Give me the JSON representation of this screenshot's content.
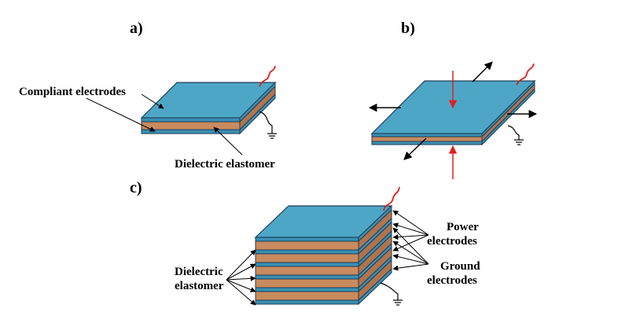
{
  "panels": {
    "a": {
      "label": "a)",
      "compliant_electrodes": "Compliant electrodes",
      "dielectric_elastomer": "Dielectric elastomer"
    },
    "b": {
      "label": "b)"
    },
    "c": {
      "label": "c)",
      "dielectric_line1": "Dielectric",
      "dielectric_line2": "elastomer",
      "power_line1": "Power",
      "power_line2": "electrodes",
      "ground_line1": "Ground",
      "ground_line2": "electrodes"
    }
  },
  "colors": {
    "electrode_top": "#4ea6c6",
    "electrode_side": "#3a8fb3",
    "electrode_edge": "#1f3e57",
    "elastomer_front": "#c98a5e",
    "elastomer_side": "#b0744d",
    "wire_red": "#e0201c",
    "arrow_black": "#000000"
  },
  "icons": [
    "ground-symbol-icon",
    "wire-icon",
    "force-arrow-icon"
  ]
}
